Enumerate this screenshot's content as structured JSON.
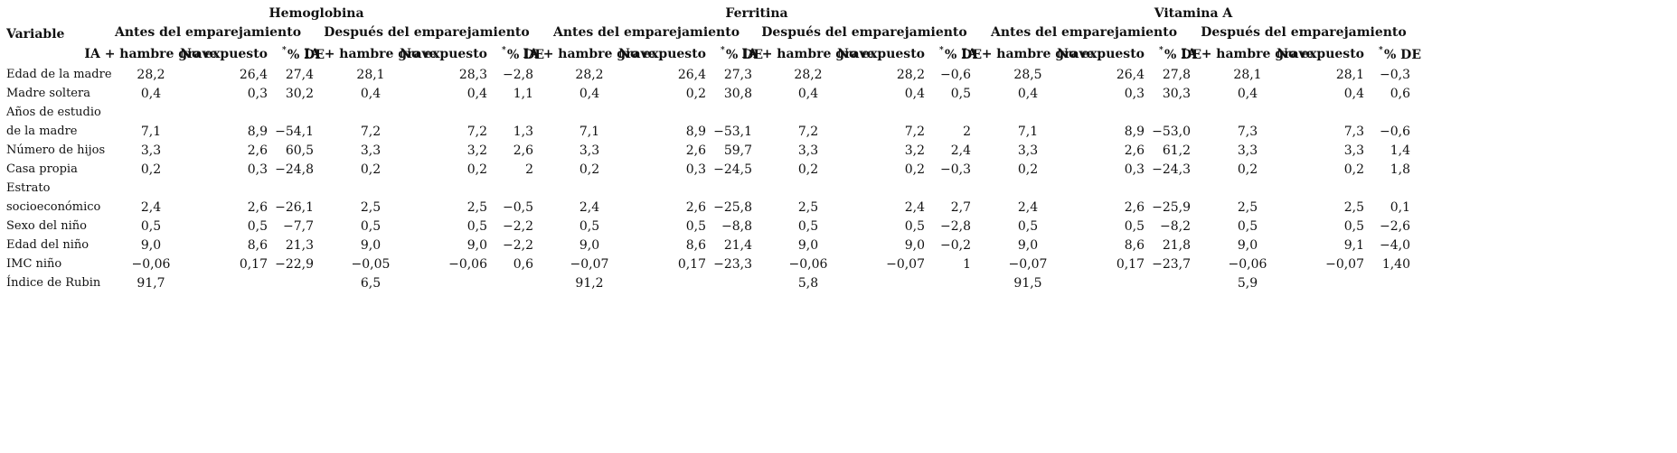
{
  "header": {
    "variable_label": "Variable",
    "groups": [
      "Hemoglobina",
      "Ferritina",
      "Vitamina A"
    ],
    "periods": [
      "Antes del emparejamiento",
      "Después del emparejamiento"
    ],
    "cols": [
      "IA + hambre grave",
      "No expuesto",
      "% DE"
    ],
    "star": "*"
  },
  "rows": [
    {
      "label": [
        "Edad de la madre"
      ],
      "values": [
        "28,2",
        "26,4",
        "27,4",
        "28,1",
        "28,3",
        "−2,8",
        "28,2",
        "26,4",
        "27,3",
        "28,2",
        "28,2",
        "−0,6",
        "28,5",
        "26,4",
        "27,8",
        "28,1",
        "28,1",
        "−0,3"
      ]
    },
    {
      "label": [
        "Madre soltera"
      ],
      "values": [
        "0,4",
        "0,3",
        "30,2",
        "0,4",
        "0,4",
        "1,1",
        "0,4",
        "0,2",
        "30,8",
        "0,4",
        "0,4",
        "0,5",
        "0,4",
        "0,3",
        "30,3",
        "0,4",
        "0,4",
        "0,6"
      ]
    },
    {
      "label": [
        "Años de estudio",
        "de la madre"
      ],
      "values": [
        "7,1",
        "8,9",
        "−54,1",
        "7,2",
        "7,2",
        "1,3",
        "7,1",
        "8,9",
        "−53,1",
        "7,2",
        "7,2",
        "2",
        "7,1",
        "8,9",
        "−53,0",
        "7,3",
        "7,3",
        "−0,6"
      ]
    },
    {
      "label": [
        "Número de hijos"
      ],
      "values": [
        "3,3",
        "2,6",
        "60,5",
        "3,3",
        "3,2",
        "2,6",
        "3,3",
        "2,6",
        "59,7",
        "3,3",
        "3,2",
        "2,4",
        "3,3",
        "2,6",
        "61,2",
        "3,3",
        "3,3",
        "1,4"
      ]
    },
    {
      "label": [
        "Casa propia"
      ],
      "values": [
        "0,2",
        "0,3",
        "−24,8",
        "0,2",
        "0,2",
        "2",
        "0,2",
        "0,3",
        "−24,5",
        "0,2",
        "0,2",
        "−0,3",
        "0,2",
        "0,3",
        "−24,3",
        "0,2",
        "0,2",
        "1,8"
      ]
    },
    {
      "label": [
        "Estrato",
        "socioeconómico"
      ],
      "values": [
        "2,4",
        "2,6",
        "−26,1",
        "2,5",
        "2,5",
        "−0,5",
        "2,4",
        "2,6",
        "−25,8",
        "2,5",
        "2,4",
        "2,7",
        "2,4",
        "2,6",
        "−25,9",
        "2,5",
        "2,5",
        "0,1"
      ]
    },
    {
      "label": [
        "Sexo del niño"
      ],
      "values": [
        "0,5",
        "0,5",
        "−7,7",
        "0,5",
        "0,5",
        "−2,2",
        "0,5",
        "0,5",
        "−8,8",
        "0,5",
        "0,5",
        "−2,8",
        "0,5",
        "0,5",
        "−8,2",
        "0,5",
        "0,5",
        "−2,6"
      ]
    },
    {
      "label": [
        "Edad del niño"
      ],
      "values": [
        "9,0",
        "8,6",
        "21,3",
        "9,0",
        "9,0",
        "−2,2",
        "9,0",
        "8,6",
        "21,4",
        "9,0",
        "9,0",
        "−0,2",
        "9,0",
        "8,6",
        "21,8",
        "9,0",
        "9,1",
        "−4,0"
      ]
    },
    {
      "label": [
        "IMC niño"
      ],
      "values": [
        "−0,06",
        "0,17",
        "−22,9",
        "−0,05",
        "−0,06",
        "0,6",
        "−0,07",
        "0,17",
        "−23,3",
        "−0,06",
        "−0,07",
        "1",
        "−0,07",
        "0,17",
        "−23,7",
        "−0,06",
        "−0,07",
        "1,40"
      ]
    },
    {
      "label": [
        "Índice de Rubin"
      ],
      "rubin": [
        "91,7",
        "6,5",
        "91,2",
        "5,8",
        "91,5",
        "5,9"
      ]
    }
  ]
}
